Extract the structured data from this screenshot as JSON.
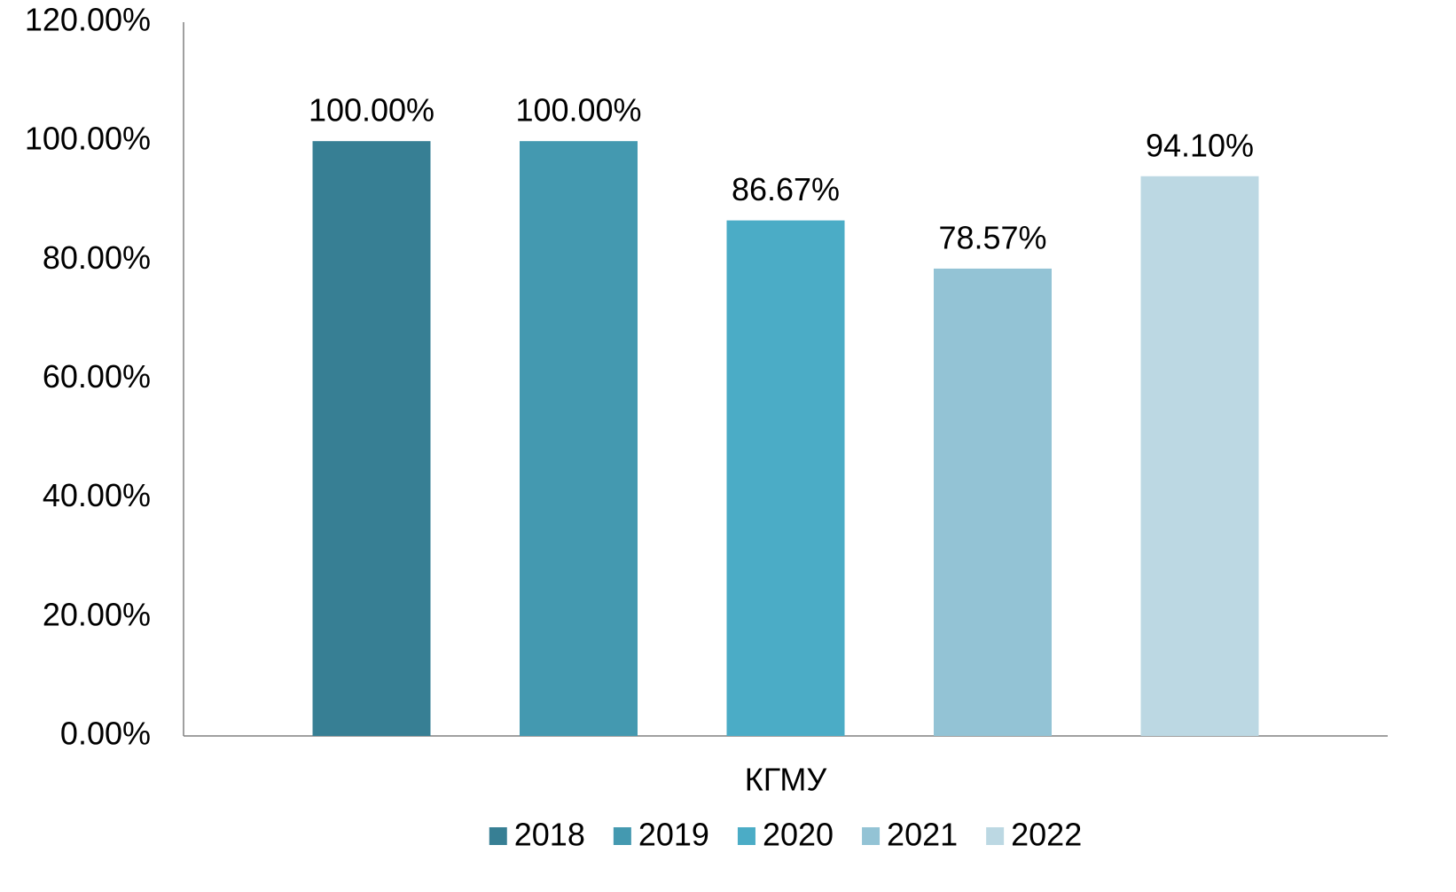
{
  "chart_data": {
    "type": "bar",
    "categories": [
      "КГМУ"
    ],
    "series": [
      {
        "name": "2018",
        "color": "#377f94",
        "values": [
          100
        ],
        "value_labels": [
          "100.00%"
        ]
      },
      {
        "name": "2019",
        "color": "#4499b0",
        "values": [
          100
        ],
        "value_labels": [
          "100.00%"
        ]
      },
      {
        "name": "2020",
        "color": "#4bacc6",
        "values": [
          86.67
        ],
        "value_labels": [
          "86.67%"
        ]
      },
      {
        "name": "2021",
        "color": "#93c3d5",
        "values": [
          78.57
        ],
        "value_labels": [
          "78.57%"
        ]
      },
      {
        "name": "2022",
        "color": "#bcd8e3",
        "values": [
          94.1
        ],
        "value_labels": [
          "94.10%"
        ]
      }
    ],
    "ylim": [
      0,
      120
    ],
    "yticks": [
      {
        "value": 0,
        "label": "0.00%"
      },
      {
        "value": 20,
        "label": "20.00%"
      },
      {
        "value": 40,
        "label": "40.00%"
      },
      {
        "value": 60,
        "label": "60.00%"
      },
      {
        "value": 80,
        "label": "80.00%"
      },
      {
        "value": 100,
        "label": "100.00%"
      },
      {
        "value": 120,
        "label": "120.00%"
      }
    ],
    "grid": false,
    "legend": "bottom"
  }
}
